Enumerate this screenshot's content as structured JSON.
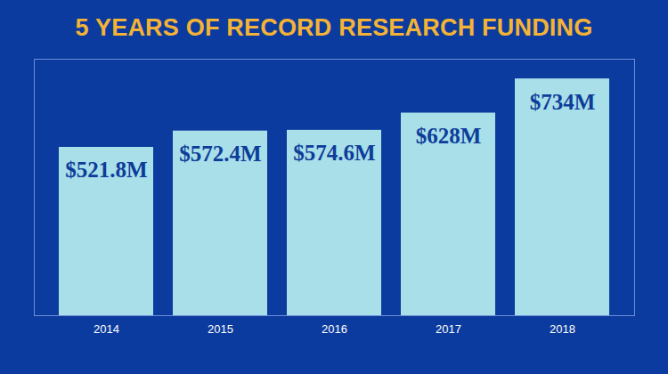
{
  "chart_data": {
    "type": "bar",
    "title": "5 YEARS OF RECORD RESEARCH FUNDING",
    "categories": [
      "2014",
      "2015",
      "2016",
      "2017",
      "2018"
    ],
    "values": [
      521.8,
      572.4,
      574.6,
      628,
      734
    ],
    "value_labels": [
      "$521.8M",
      "$572.4M",
      "$574.6M",
      "$628M",
      "$734M"
    ],
    "color": "#a8dfe9",
    "ylim": [
      0,
      795
    ],
    "yticks": [],
    "grid": false,
    "data_labels": true,
    "tick_labels": "x"
  }
}
